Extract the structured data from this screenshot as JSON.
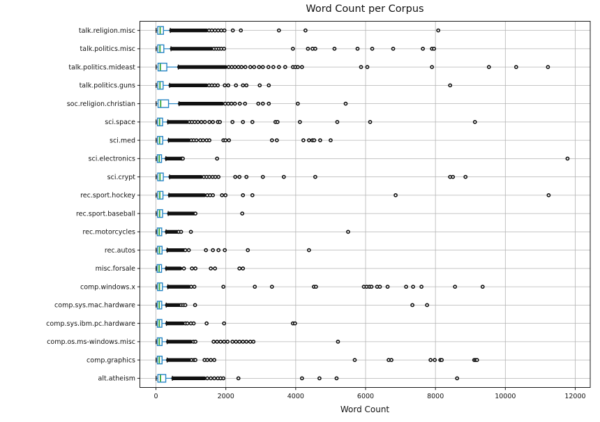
{
  "chart_data": {
    "type": "boxplot",
    "orientation": "horizontal",
    "title": "Word Count per Corpus",
    "xlabel": "Word Count",
    "ylabel": "",
    "xlim": [
      -460,
      12430
    ],
    "xticks": [
      0,
      2000,
      4000,
      6000,
      8000,
      10000,
      12000
    ],
    "grid": true,
    "legend": false,
    "colors": {
      "box_edge": "#2585c5",
      "box_fill": "#ffffff",
      "median": "#36a836",
      "whisker": "#2585c5",
      "cap": "#000000",
      "flier": "#111111",
      "dense_band": "#111111",
      "grid": "#b4b4b4",
      "spine": "#1a1a1a",
      "text": "#111111"
    },
    "categories": [
      {
        "label": "talk.religion.misc",
        "whislo": 5,
        "q1": 50,
        "med": 120,
        "q3": 215,
        "whishi": 410,
        "dense_band": [
          430,
          1450
        ],
        "outliers": [
          1520,
          1600,
          1690,
          1780,
          1870,
          1960,
          2200,
          2430,
          3520,
          4280,
          8080
        ]
      },
      {
        "label": "talk.politics.misc",
        "whislo": 5,
        "q1": 50,
        "med": 115,
        "q3": 225,
        "whishi": 430,
        "dense_band": [
          450,
          1600
        ],
        "outliers": [
          1660,
          1730,
          1800,
          1870,
          1950,
          3920,
          4350,
          4480,
          4560,
          5110,
          5770,
          6190,
          6790,
          7640,
          7900,
          7960
        ]
      },
      {
        "label": "talk.politics.mideast",
        "whislo": 5,
        "q1": 60,
        "med": 125,
        "q3": 310,
        "whishi": 640,
        "dense_band": [
          660,
          2000
        ],
        "outliers": [
          2080,
          2170,
          2260,
          2360,
          2450,
          2560,
          2700,
          2810,
          2950,
          3060,
          3220,
          3360,
          3520,
          3700,
          3920,
          3990,
          4060,
          4180,
          5870,
          6050,
          7900,
          9530,
          10310,
          11220
        ]
      },
      {
        "label": "talk.politics.guns",
        "whislo": 5,
        "q1": 50,
        "med": 115,
        "q3": 205,
        "whishi": 390,
        "dense_band": [
          410,
          1450
        ],
        "outliers": [
          1520,
          1600,
          1680,
          1770,
          1970,
          2070,
          2290,
          2490,
          2590,
          2970,
          3230,
          8420
        ]
      },
      {
        "label": "soc.religion.christian",
        "whislo": 5,
        "q1": 60,
        "med": 135,
        "q3": 360,
        "whishi": 660,
        "dense_band": [
          680,
          1900
        ],
        "outliers": [
          1980,
          2070,
          2160,
          2260,
          2400,
          2550,
          2930,
          3060,
          3230,
          4060,
          5430
        ]
      },
      {
        "label": "sci.space",
        "whislo": 5,
        "q1": 45,
        "med": 105,
        "q3": 190,
        "whishi": 340,
        "dense_band": [
          360,
          900
        ],
        "outliers": [
          960,
          1030,
          1110,
          1200,
          1300,
          1400,
          1530,
          1630,
          1770,
          1830,
          2190,
          2490,
          2760,
          3420,
          3480,
          4120,
          5190,
          6130,
          9130
        ]
      },
      {
        "label": "sci.med",
        "whislo": 5,
        "q1": 45,
        "med": 105,
        "q3": 195,
        "whishi": 360,
        "dense_band": [
          380,
          950
        ],
        "outliers": [
          1010,
          1080,
          1160,
          1270,
          1350,
          1450,
          1530,
          1930,
          1990,
          2090,
          3320,
          3460,
          4220,
          4380,
          4480,
          4530,
          4700,
          5000
        ]
      },
      {
        "label": "sci.electronics",
        "whislo": 5,
        "q1": 40,
        "med": 95,
        "q3": 160,
        "whishi": 285,
        "dense_band": [
          300,
          700
        ],
        "outliers": [
          740,
          770,
          1750,
          11780
        ]
      },
      {
        "label": "sci.crypt",
        "whislo": 5,
        "q1": 50,
        "med": 115,
        "q3": 210,
        "whishi": 390,
        "dense_band": [
          410,
          1300
        ],
        "outliers": [
          1370,
          1450,
          1530,
          1620,
          1700,
          1790,
          2270,
          2390,
          2590,
          3060,
          3660,
          4560,
          8420,
          8500,
          8860
        ]
      },
      {
        "label": "rec.sport.hockey",
        "whislo": 5,
        "q1": 50,
        "med": 110,
        "q3": 200,
        "whishi": 370,
        "dense_band": [
          390,
          1390
        ],
        "outliers": [
          1470,
          1550,
          1630,
          1890,
          1990,
          2490,
          2760,
          6860,
          11240
        ]
      },
      {
        "label": "rec.sport.baseball",
        "whislo": 5,
        "q1": 45,
        "med": 105,
        "q3": 190,
        "whishi": 350,
        "dense_band": [
          370,
          1090
        ],
        "outliers": [
          1130,
          2470
        ]
      },
      {
        "label": "rec.motorcycles",
        "whislo": 5,
        "q1": 40,
        "med": 95,
        "q3": 165,
        "whishi": 290,
        "dense_band": [
          305,
          610
        ],
        "outliers": [
          650,
          720,
          1000,
          5500
        ]
      },
      {
        "label": "rec.autos",
        "whislo": 5,
        "q1": 45,
        "med": 100,
        "q3": 175,
        "whishi": 320,
        "dense_band": [
          340,
          800
        ],
        "outliers": [
          840,
          940,
          1430,
          1630,
          1790,
          1970,
          2630,
          4380
        ]
      },
      {
        "label": "misc.forsale",
        "whislo": 5,
        "q1": 35,
        "med": 90,
        "q3": 160,
        "whishi": 290,
        "dense_band": [
          305,
          700
        ],
        "outliers": [
          800,
          1030,
          1130,
          1570,
          1690,
          2390,
          2490
        ]
      },
      {
        "label": "comp.windows.x",
        "whislo": 5,
        "q1": 45,
        "med": 100,
        "q3": 185,
        "whishi": 340,
        "dense_band": [
          360,
          950
        ],
        "outliers": [
          1010,
          1100,
          1930,
          2830,
          3320,
          4520,
          4580,
          5950,
          6030,
          6110,
          6170,
          6330,
          6410,
          6630,
          7160,
          7360,
          7600,
          8560,
          9350
        ]
      },
      {
        "label": "comp.sys.mac.hardware",
        "whislo": 5,
        "q1": 40,
        "med": 95,
        "q3": 165,
        "whishi": 295,
        "dense_band": [
          310,
          680
        ],
        "outliers": [
          720,
          780,
          840,
          1120,
          7340,
          7760
        ]
      },
      {
        "label": "comp.sys.ibm.pc.hardware",
        "whislo": 5,
        "q1": 40,
        "med": 95,
        "q3": 170,
        "whishi": 300,
        "dense_band": [
          320,
          780
        ],
        "outliers": [
          840,
          900,
          1000,
          1080,
          1450,
          1950,
          3920,
          3980
        ]
      },
      {
        "label": "comp.os.ms-windows.misc",
        "whislo": 5,
        "q1": 40,
        "med": 95,
        "q3": 175,
        "whishi": 320,
        "dense_band": [
          340,
          1000
        ],
        "outliers": [
          1070,
          1130,
          1650,
          1750,
          1850,
          1950,
          2050,
          2190,
          2290,
          2390,
          2490,
          2590,
          2700,
          2790,
          5210
        ]
      },
      {
        "label": "comp.graphics",
        "whislo": 5,
        "q1": 40,
        "med": 95,
        "q3": 175,
        "whishi": 320,
        "dense_band": [
          340,
          970
        ],
        "outliers": [
          1020,
          1090,
          1130,
          1390,
          1470,
          1570,
          1670,
          5690,
          6660,
          6740,
          7860,
          7980,
          8140,
          8180,
          9110,
          9150,
          9190
        ]
      },
      {
        "label": "alt.atheism",
        "whislo": 5,
        "q1": 55,
        "med": 130,
        "q3": 280,
        "whishi": 470,
        "dense_band": [
          490,
          1390
        ],
        "outliers": [
          1470,
          1570,
          1670,
          1770,
          1850,
          1930,
          2360,
          4180,
          4680,
          5170,
          8620
        ]
      }
    ]
  }
}
